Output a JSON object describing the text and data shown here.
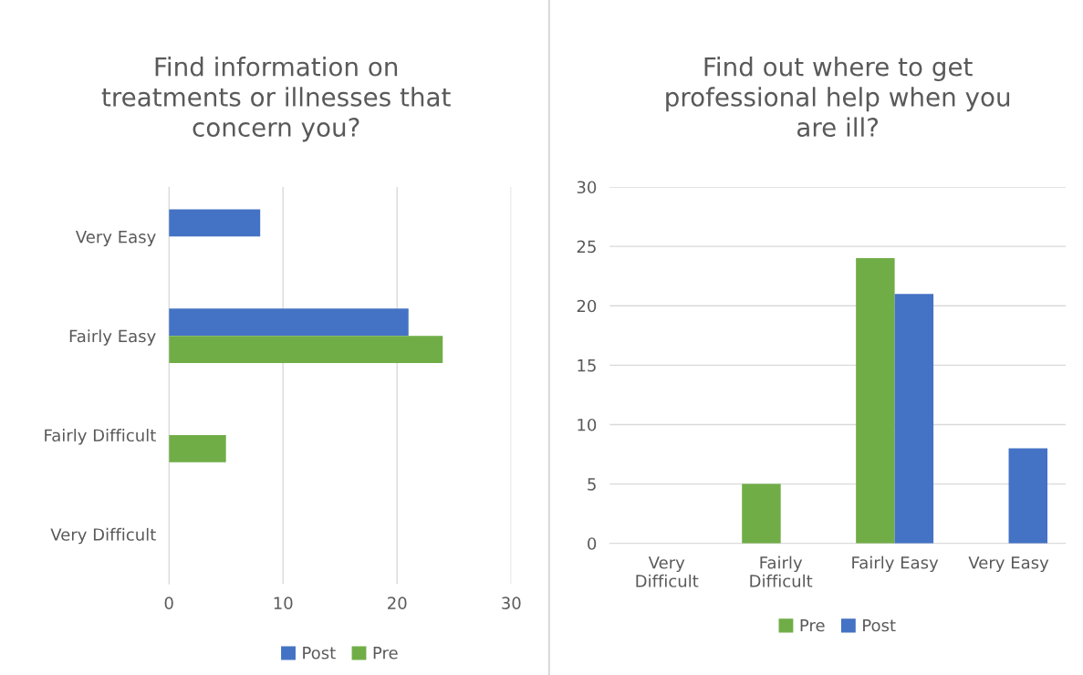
{
  "chart_data": [
    {
      "type": "bar",
      "orientation": "horizontal",
      "title": "Find information on treatments or illnesses that concern you?",
      "categories": [
        "Very Easy",
        "Fairly Easy",
        "Fairly Difficult",
        "Very Difficult"
      ],
      "series": [
        {
          "name": "Post",
          "color": "#4472c4",
          "values": [
            8,
            21,
            0,
            0
          ]
        },
        {
          "name": "Pre",
          "color": "#70ad47",
          "values": [
            0,
            24,
            5,
            0
          ]
        }
      ],
      "xlim": [
        0,
        30
      ],
      "xticks": [
        0,
        10,
        20,
        30
      ],
      "grid": "x",
      "legend": "bottom"
    },
    {
      "type": "bar",
      "title": "Find out where to get professional help when you are ill?",
      "categories": [
        "Very Difficult",
        "Fairly Difficult",
        "Fairly Easy",
        "Very Easy"
      ],
      "series": [
        {
          "name": "Pre",
          "color": "#70ad47",
          "values": [
            0,
            5,
            24,
            0
          ]
        },
        {
          "name": "Post",
          "color": "#4472c4",
          "values": [
            0,
            0,
            21,
            8
          ]
        }
      ],
      "ylim": [
        0,
        30
      ],
      "yticks": [
        0,
        5,
        10,
        15,
        20,
        25,
        30
      ],
      "grid": "y",
      "legend": "bottom"
    }
  ]
}
